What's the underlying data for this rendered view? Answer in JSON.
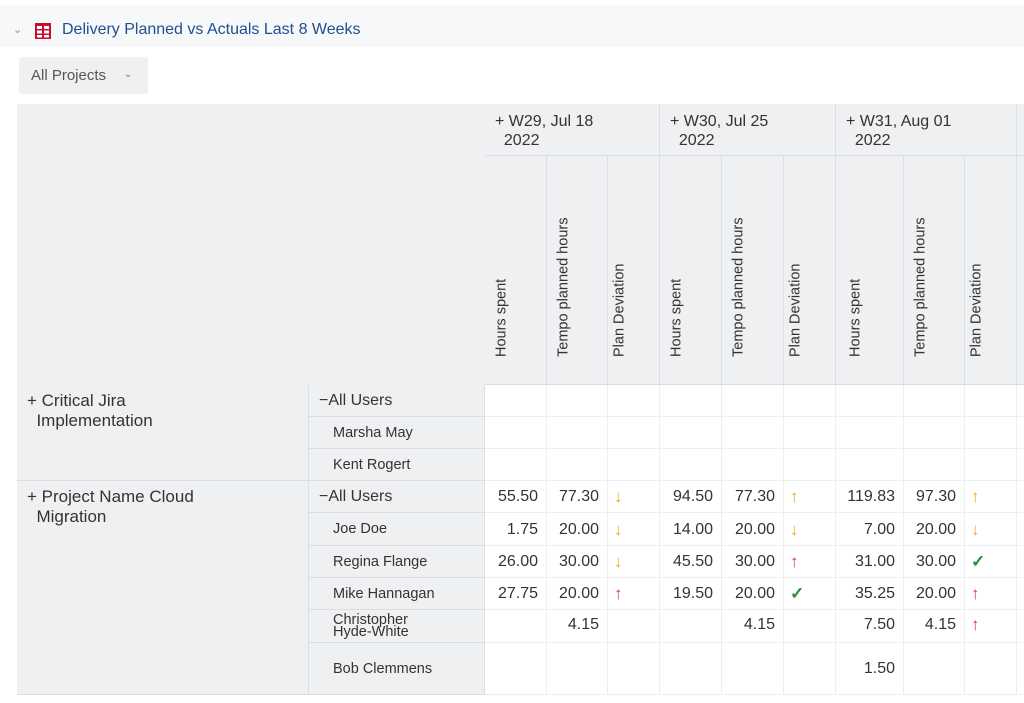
{
  "report": {
    "title": "Delivery Planned vs Actuals Last 8 Weeks",
    "filter_label": "All Projects"
  },
  "weeks": [
    {
      "label_line1": "W29, Jul 18",
      "label_line2": "2022"
    },
    {
      "label_line1": "W30, Jul 25",
      "label_line2": "2022"
    },
    {
      "label_line1": "W31, Aug 01",
      "label_line2": "2022"
    }
  ],
  "measures": [
    "Hours spent",
    "Tempo planned hours",
    "Plan Deviation"
  ],
  "projects": [
    {
      "name_line1": "Critical Jira",
      "name_line2": "Implementation",
      "users": [
        "All Users",
        "Marsha May",
        "Kent Rogert"
      ]
    },
    {
      "name_line1": "Project Name Cloud",
      "name_line2": "Migration",
      "users": [
        "All Users",
        "Joe Doe",
        "Regina Flange",
        "Mike Hannagan",
        "Christopher Hyde-White",
        "Bob Clemmens"
      ]
    }
  ],
  "rows": [
    [
      "55.50",
      "77.30",
      "down",
      "94.50",
      "77.30",
      "up",
      "119.83",
      "97.30",
      "up"
    ],
    [
      "1.75",
      "20.00",
      "down",
      "14.00",
      "20.00",
      "down",
      "7.00",
      "20.00",
      "down"
    ],
    [
      "26.00",
      "30.00",
      "down",
      "45.50",
      "30.00",
      "up-red",
      "31.00",
      "30.00",
      "ok"
    ],
    [
      "27.75",
      "20.00",
      "up-red",
      "19.50",
      "20.00",
      "ok",
      "35.25",
      "20.00",
      "up-red"
    ],
    [
      "",
      "4.15",
      "",
      "",
      "4.15",
      "",
      "7.50",
      "4.15",
      "up-red"
    ],
    [
      "",
      "",
      "",
      "",
      "",
      "",
      "1.50",
      "",
      ""
    ]
  ],
  "icons": {
    "expand": "+",
    "collapse": "−",
    "chevron": "⌄",
    "down": "↓",
    "up": "↑",
    "ok": "✓"
  },
  "colors": {
    "warning": "#f5a623",
    "danger": "#e03c31",
    "success": "#2e8b3a",
    "title": "#1f4f8f"
  }
}
